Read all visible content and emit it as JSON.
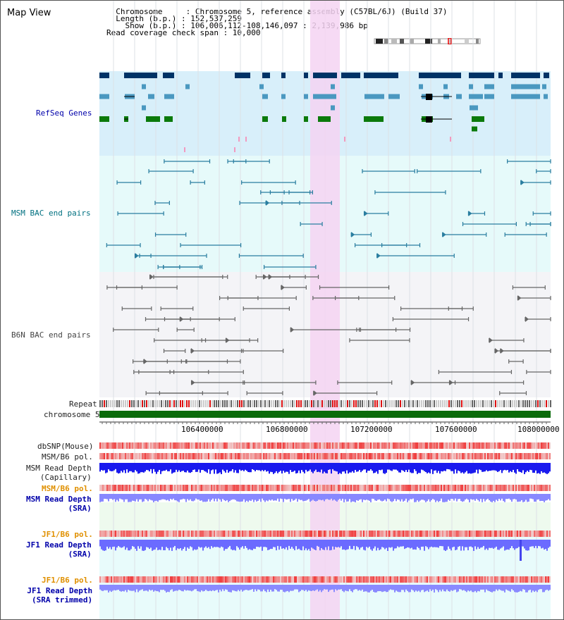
{
  "header": {
    "title": "Map View",
    "info_lines": [
      "  Chromosome     : Chromosome 5, reference assembly (C57BL/6J) (Build 37)",
      "  Length (b.p.) : 152,537,259",
      "    Show (b.p.) : 106,006,112-108,146,097 : 2,139,986 bp",
      "Read coverage check span : 10,000"
    ]
  },
  "tracks": {
    "refseq": "RefSeq Genes",
    "msm_bac": "MSM BAC end pairs",
    "b6n_bac": "B6N BAC end pairs",
    "repeat": "Repeat",
    "chromosome": "chromosome 5",
    "dbsnp": "dbSNP(Mouse)",
    "msm_b6_pol_1": "MSM/B6 pol.",
    "msm_depth_cap_1": "MSM Read Depth",
    "msm_depth_cap_2": "(Capillary)",
    "msm_b6_pol_2": "MSM/B6 pol.",
    "msm_depth_sra_1": "MSM Read Depth",
    "msm_depth_sra_2": "(SRA)",
    "jf1_b6_pol_1": "JF1/B6 pol.",
    "jf1_depth_sra_1": "JF1 Read Depth",
    "jf1_depth_sra_2": "(SRA)",
    "jf1_b6_pol_2": "JF1/B6 pol.",
    "jf1_depth_trim_1": "JF1 Read Depth",
    "jf1_depth_trim_2": "(SRA trimmed)"
  },
  "axis": {
    "ticks": [
      "106400000",
      "106800000",
      "107200000",
      "107600000",
      "108000000"
    ]
  },
  "colors": {
    "refseq_bg": "#d8effa",
    "msm_bg": "#e6fafa",
    "b6n_bg": "#f4f4f7",
    "highlight": "#f5d3f2",
    "gene_dark": "#003366",
    "gene_mid": "#4a98c0",
    "gene_green": "#0b7a0b",
    "msm_line": "#2a7ea0",
    "b6n_line": "#666666",
    "chromosome": "#0b6b0b",
    "label_blue": "#0000aa",
    "label_orange": "#e09000",
    "label_teal": "#007080"
  }
}
